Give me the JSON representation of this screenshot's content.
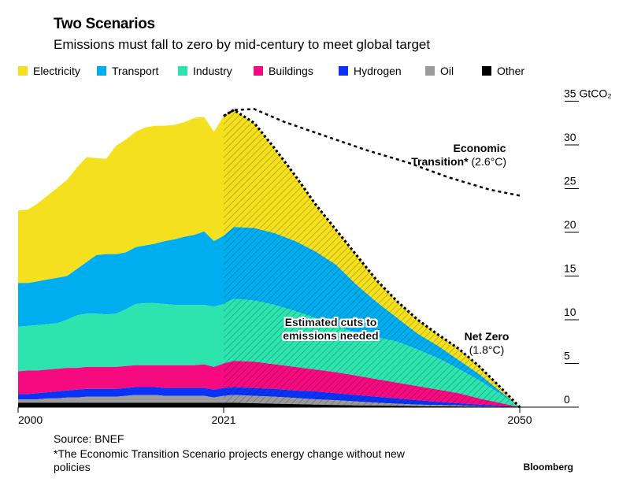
{
  "header": {
    "title": "Two Scenarios",
    "subtitle": "Emissions must fall to zero by mid-century to meet global target"
  },
  "footer": {
    "source": "Source: BNEF",
    "note_line1": "*The Economic Transition Scenario projects energy change without new",
    "note_line2": "policies",
    "brand": "Bloomberg"
  },
  "chart_data": {
    "type": "area",
    "stacked": true,
    "values_are": "cumulative stack top (GtCO2) for each layer",
    "title": "Two Scenarios",
    "ylabel": "GtCO2",
    "ylim": [
      0,
      35
    ],
    "xlim": [
      2000,
      2050
    ],
    "y_ticks": [
      {
        "value": 35,
        "label": "35 GtCO₂"
      },
      {
        "value": 30,
        "label": "30"
      },
      {
        "value": 25,
        "label": "25"
      },
      {
        "value": 20,
        "label": "20"
      },
      {
        "value": 15,
        "label": "15"
      },
      {
        "value": 10,
        "label": "10"
      },
      {
        "value": 5,
        "label": "5"
      },
      {
        "value": 0,
        "label": "0"
      }
    ],
    "x_ticks": [
      {
        "value": 2000,
        "label": "2000"
      },
      {
        "value": 2021,
        "label": "2021"
      },
      {
        "value": 2050,
        "label": "2050"
      }
    ],
    "projection_start": 2021,
    "x": [
      2000,
      2001,
      2002,
      2003,
      2004,
      2005,
      2006,
      2007,
      2008,
      2009,
      2010,
      2011,
      2012,
      2013,
      2014,
      2015,
      2016,
      2017,
      2018,
      2019,
      2020,
      2021,
      2022,
      2024,
      2026,
      2028,
      2030,
      2032,
      2034,
      2036,
      2038,
      2040,
      2042,
      2044,
      2046,
      2048,
      2050
    ],
    "series": [
      {
        "name": "Electricity",
        "color": "#f4e01e",
        "stack_top": [
          22.5,
          22.6,
          23.3,
          24.2,
          25.1,
          26.0,
          27.4,
          28.6,
          28.5,
          28.4,
          29.9,
          30.6,
          31.5,
          32.0,
          32.2,
          32.2,
          32.3,
          32.6,
          33.1,
          33.2,
          31.5,
          33.3,
          34.0,
          32.5,
          29.6,
          26.5,
          23.2,
          20.3,
          17.4,
          14.5,
          12.1,
          10.0,
          8.3,
          6.7,
          4.7,
          2.4,
          0
        ]
      },
      {
        "name": "Transport",
        "color": "#00adef",
        "stack_top": [
          14.2,
          14.2,
          14.4,
          14.6,
          14.8,
          15.0,
          15.8,
          16.6,
          17.4,
          17.5,
          17.5,
          17.7,
          18.3,
          18.5,
          18.7,
          19.0,
          19.2,
          19.5,
          19.7,
          20.1,
          19.0,
          19.6,
          20.6,
          20.5,
          19.9,
          19.0,
          17.8,
          16.3,
          14.0,
          12.0,
          10.2,
          8.4,
          7.0,
          5.4,
          3.8,
          1.9,
          0
        ]
      },
      {
        "name": "Industry",
        "color": "#2ee4ae",
        "stack_top": [
          9.2,
          9.3,
          9.4,
          9.5,
          9.6,
          10.0,
          10.5,
          10.7,
          10.7,
          10.6,
          10.7,
          11.2,
          11.8,
          11.9,
          11.9,
          11.8,
          11.7,
          11.7,
          11.7,
          11.7,
          11.5,
          11.8,
          12.4,
          12.2,
          11.7,
          11.0,
          10.2,
          9.3,
          8.5,
          8.0,
          7.5,
          6.6,
          5.6,
          4.4,
          3.1,
          1.6,
          0
        ]
      },
      {
        "name": "Buildings",
        "color": "#f50a80",
        "stack_top": [
          4.1,
          4.2,
          4.2,
          4.3,
          4.4,
          4.5,
          4.5,
          4.6,
          4.6,
          4.6,
          4.6,
          4.7,
          4.8,
          4.8,
          4.8,
          4.8,
          4.8,
          4.8,
          4.8,
          4.9,
          4.6,
          5.0,
          5.3,
          5.2,
          4.9,
          4.6,
          4.3,
          4.0,
          3.6,
          3.2,
          2.8,
          2.4,
          2.0,
          1.6,
          1.0,
          0.5,
          0
        ]
      },
      {
        "name": "Hydrogen",
        "color": "#0a34f5",
        "stack_top": [
          1.5,
          1.5,
          1.6,
          1.7,
          1.8,
          1.9,
          2.0,
          2.1,
          2.1,
          2.1,
          2.1,
          2.2,
          2.3,
          2.3,
          2.3,
          2.2,
          2.2,
          2.2,
          2.2,
          2.2,
          2.0,
          2.2,
          2.3,
          2.2,
          2.1,
          1.9,
          1.8,
          1.6,
          1.4,
          1.2,
          1.0,
          0.8,
          0.6,
          0.45,
          0.3,
          0.15,
          0
        ]
      },
      {
        "name": "Oil",
        "color": "#9b9b9b",
        "stack_top": [
          0.9,
          0.9,
          0.9,
          1.0,
          1.0,
          1.1,
          1.1,
          1.2,
          1.2,
          1.2,
          1.2,
          1.3,
          1.4,
          1.4,
          1.4,
          1.3,
          1.3,
          1.3,
          1.3,
          1.3,
          1.1,
          1.3,
          1.4,
          1.3,
          1.2,
          1.05,
          0.9,
          0.8,
          0.65,
          0.5,
          0.4,
          0.3,
          0.25,
          0.2,
          0.1,
          0.05,
          0
        ]
      },
      {
        "name": "Other",
        "color": "#000000",
        "stack_top": [
          0.5,
          0.5,
          0.5,
          0.5,
          0.5,
          0.5,
          0.5,
          0.5,
          0.5,
          0.5,
          0.5,
          0.5,
          0.5,
          0.5,
          0.5,
          0.5,
          0.5,
          0.5,
          0.5,
          0.5,
          0.5,
          0.5,
          0.5,
          0.45,
          0.4,
          0.35,
          0.3,
          0.25,
          0.2,
          0.18,
          0.15,
          0.12,
          0.1,
          0.08,
          0.05,
          0.02,
          0
        ]
      }
    ],
    "scenario_lines": [
      {
        "name": "Economic Transition",
        "style": "dotted",
        "x": [
          2021,
          2022,
          2024,
          2027,
          2031,
          2035,
          2039,
          2043,
          2047,
          2050
        ],
        "y": [
          33.3,
          34.0,
          34.1,
          32.6,
          31.0,
          29.4,
          28.0,
          26.3,
          24.9,
          24.2
        ]
      },
      {
        "name": "Net Zero",
        "style": "dotted",
        "follows": "Electricity stack_top from 2021"
      }
    ],
    "annotations": {
      "cuts_line1": "Estimated cuts to",
      "cuts_line2": "emissions needed",
      "econ_line1": "Economic",
      "econ_line2_bold": "Transition*",
      "econ_line2_temp": " (2.6°C)",
      "netzero_line1": "Net Zero",
      "netzero_line2": "(1.8°C)"
    }
  }
}
